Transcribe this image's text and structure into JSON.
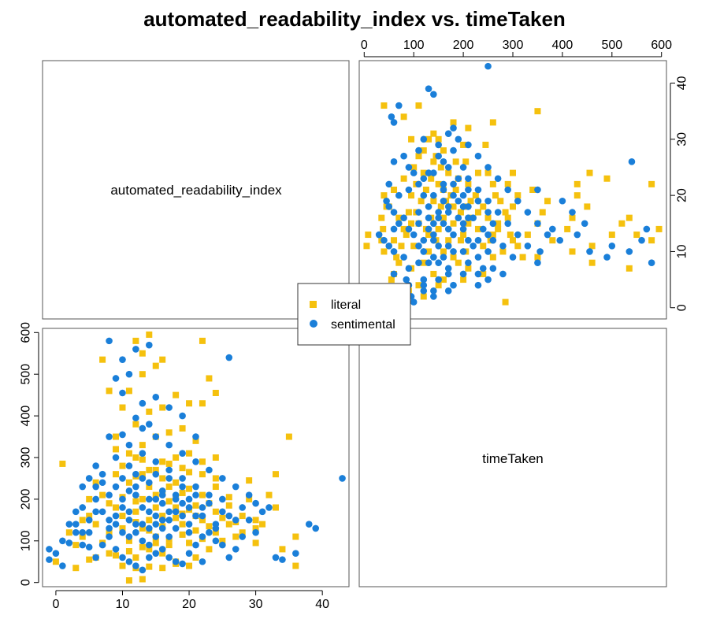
{
  "chart_data": {
    "type": "scatter",
    "title": "automated_readability_index vs. timeTaken",
    "variables": [
      "automated_readability_index",
      "timeTaken"
    ],
    "xlim_readability": [
      -2,
      44
    ],
    "ylim_readability": [
      -2,
      44
    ],
    "xlim_time": [
      -10,
      610
    ],
    "ylim_time": [
      -10,
      610
    ],
    "readability_ticks": [
      0,
      10,
      20,
      30,
      40
    ],
    "time_ticks": [
      0,
      100,
      200,
      300,
      400,
      500,
      600
    ],
    "grid": false,
    "legend_position": "center",
    "series": [
      {
        "name": "literal",
        "marker": "square",
        "color": "#F5C10E",
        "points": [
          [
            14,
            80
          ],
          [
            12,
            60
          ],
          [
            16,
            70
          ],
          [
            18,
            45
          ],
          [
            11,
            100
          ],
          [
            20,
            95
          ],
          [
            15,
            110
          ],
          [
            13,
            130
          ],
          [
            17,
            90
          ],
          [
            19,
            140
          ],
          [
            22,
            105
          ],
          [
            24,
            120
          ],
          [
            14,
            150
          ],
          [
            12,
            170
          ],
          [
            10,
            130
          ],
          [
            16,
            160
          ],
          [
            18,
            180
          ],
          [
            21,
            160
          ],
          [
            23,
            190
          ],
          [
            13,
            200
          ],
          [
            15,
            210
          ],
          [
            17,
            230
          ],
          [
            19,
            215
          ],
          [
            11,
            240
          ],
          [
            9,
            180
          ],
          [
            8,
            120
          ],
          [
            7,
            95
          ],
          [
            6,
            140
          ],
          [
            5,
            160
          ],
          [
            4,
            110
          ],
          [
            3,
            90
          ],
          [
            2,
            120
          ],
          [
            1,
            285
          ],
          [
            0,
            50
          ],
          [
            3,
            35
          ],
          [
            26,
            185
          ],
          [
            28,
            160
          ],
          [
            30,
            150
          ],
          [
            27,
            110
          ],
          [
            25,
            100
          ],
          [
            23,
            80
          ],
          [
            21,
            60
          ],
          [
            20,
            40
          ],
          [
            18,
            50
          ],
          [
            16,
            35
          ],
          [
            14,
            38
          ],
          [
            12,
            35
          ],
          [
            10,
            40
          ],
          [
            13,
            8
          ],
          [
            11,
            5
          ],
          [
            12,
            255
          ],
          [
            14,
            270
          ],
          [
            16,
            290
          ],
          [
            18,
            300
          ],
          [
            20,
            310
          ],
          [
            22,
            260
          ],
          [
            24,
            300
          ],
          [
            13,
            330
          ],
          [
            15,
            350
          ],
          [
            17,
            360
          ],
          [
            19,
            370
          ],
          [
            21,
            340
          ],
          [
            12,
            380
          ],
          [
            14,
            410
          ],
          [
            16,
            420
          ],
          [
            18,
            450
          ],
          [
            20,
            430
          ],
          [
            22,
            430
          ],
          [
            10,
            420
          ],
          [
            9,
            350
          ],
          [
            11,
            460
          ],
          [
            13,
            500
          ],
          [
            15,
            520
          ],
          [
            16,
            535
          ],
          [
            13,
            550
          ],
          [
            12,
            580
          ],
          [
            14,
            595
          ],
          [
            22,
            580
          ],
          [
            7,
            535
          ],
          [
            8,
            460
          ],
          [
            9,
            320
          ],
          [
            10,
            280
          ],
          [
            12,
            300
          ],
          [
            16,
            250
          ],
          [
            18,
            240
          ],
          [
            20,
            225
          ],
          [
            22,
            210
          ],
          [
            24,
            230
          ],
          [
            26,
            205
          ],
          [
            29,
            200
          ],
          [
            30,
            130
          ],
          [
            32,
            210
          ],
          [
            33,
            260
          ],
          [
            33,
            180
          ],
          [
            34,
            80
          ],
          [
            35,
            350
          ],
          [
            36,
            40
          ],
          [
            36,
            110
          ],
          [
            24,
            455
          ],
          [
            23,
            490
          ],
          [
            29,
            245
          ],
          [
            27,
            145
          ],
          [
            25,
            155
          ],
          [
            23,
            135
          ],
          [
            21,
            125
          ],
          [
            19,
            115
          ],
          [
            17,
            105
          ],
          [
            15,
            95
          ],
          [
            13,
            85
          ],
          [
            11,
            75
          ],
          [
            9,
            65
          ],
          [
            8,
            70
          ],
          [
            6,
            60
          ],
          [
            5,
            55
          ],
          [
            15,
            180
          ],
          [
            17,
            195
          ],
          [
            19,
            165
          ],
          [
            21,
            185
          ],
          [
            14,
            230
          ],
          [
            16,
            215
          ],
          [
            18,
            205
          ],
          [
            12,
            195
          ],
          [
            10,
            205
          ],
          [
            8,
            190
          ],
          [
            10,
            160
          ],
          [
            12,
            145
          ],
          [
            14,
            125
          ],
          [
            16,
            135
          ],
          [
            18,
            155
          ],
          [
            20,
            175
          ],
          [
            22,
            150
          ],
          [
            24,
            170
          ],
          [
            26,
            140
          ],
          [
            28,
            120
          ],
          [
            30,
            95
          ],
          [
            31,
            140
          ],
          [
            7,
            210
          ],
          [
            6,
            240
          ],
          [
            5,
            200
          ],
          [
            4,
            150
          ],
          [
            13,
            260
          ],
          [
            15,
            270
          ],
          [
            17,
            285
          ],
          [
            19,
            275
          ],
          [
            11,
            310
          ],
          [
            13,
            295
          ],
          [
            9,
            260
          ],
          [
            20,
            265
          ],
          [
            22,
            290
          ],
          [
            24,
            250
          ]
        ]
      },
      {
        "name": "sentimental",
        "marker": "circle",
        "color": "#1A7FD9",
        "points": [
          [
            43,
            250
          ],
          [
            39,
            130
          ],
          [
            38,
            140
          ],
          [
            36,
            70
          ],
          [
            33,
            60
          ],
          [
            34,
            55
          ],
          [
            26,
            540
          ],
          [
            8,
            580
          ],
          [
            10,
            535
          ],
          [
            12,
            560
          ],
          [
            14,
            570
          ],
          [
            11,
            500
          ],
          [
            9,
            490
          ],
          [
            10,
            455
          ],
          [
            13,
            430
          ],
          [
            15,
            445
          ],
          [
            17,
            420
          ],
          [
            19,
            400
          ],
          [
            21,
            350
          ],
          [
            14,
            380
          ],
          [
            12,
            395
          ],
          [
            10,
            355
          ],
          [
            8,
            350
          ],
          [
            6,
            280
          ],
          [
            5,
            250
          ],
          [
            4,
            230
          ],
          [
            3,
            170
          ],
          [
            2,
            140
          ],
          [
            1,
            100
          ],
          [
            -1,
            80
          ],
          [
            0,
            70
          ],
          [
            1,
            40
          ],
          [
            -1,
            55
          ],
          [
            2,
            95
          ],
          [
            4,
            120
          ],
          [
            5,
            85
          ],
          [
            6,
            60
          ],
          [
            7,
            90
          ],
          [
            8,
            130
          ],
          [
            9,
            160
          ],
          [
            10,
            180
          ],
          [
            11,
            150
          ],
          [
            12,
            120
          ],
          [
            13,
            100
          ],
          [
            14,
            90
          ],
          [
            15,
            110
          ],
          [
            16,
            130
          ],
          [
            17,
            150
          ],
          [
            18,
            170
          ],
          [
            19,
            190
          ],
          [
            20,
            140
          ],
          [
            21,
            160
          ],
          [
            22,
            180
          ],
          [
            23,
            120
          ],
          [
            24,
            100
          ],
          [
            25,
            90
          ],
          [
            26,
            60
          ],
          [
            27,
            80
          ],
          [
            28,
            110
          ],
          [
            29,
            150
          ],
          [
            30,
            190
          ],
          [
            31,
            170
          ],
          [
            29,
            210
          ],
          [
            27,
            230
          ],
          [
            25,
            200
          ],
          [
            23,
            210
          ],
          [
            21,
            230
          ],
          [
            19,
            250
          ],
          [
            17,
            270
          ],
          [
            15,
            290
          ],
          [
            13,
            310
          ],
          [
            11,
            330
          ],
          [
            9,
            300
          ],
          [
            7,
            260
          ],
          [
            6,
            200
          ],
          [
            5,
            150
          ],
          [
            4,
            180
          ],
          [
            3,
            120
          ],
          [
            7,
            170
          ],
          [
            8,
            110
          ],
          [
            9,
            80
          ],
          [
            10,
            60
          ],
          [
            11,
            50
          ],
          [
            12,
            40
          ],
          [
            13,
            30
          ],
          [
            14,
            60
          ],
          [
            15,
            70
          ],
          [
            16,
            80
          ],
          [
            17,
            60
          ],
          [
            18,
            50
          ],
          [
            19,
            45
          ],
          [
            20,
            70
          ],
          [
            21,
            90
          ],
          [
            22,
            50
          ],
          [
            24,
            130
          ],
          [
            26,
            160
          ],
          [
            28,
            180
          ],
          [
            30,
            120
          ],
          [
            32,
            180
          ],
          [
            25,
            250
          ],
          [
            23,
            270
          ],
          [
            21,
            290
          ],
          [
            19,
            310
          ],
          [
            17,
            330
          ],
          [
            15,
            350
          ],
          [
            13,
            370
          ],
          [
            11,
            280
          ],
          [
            12,
            260
          ],
          [
            14,
            240
          ],
          [
            16,
            220
          ],
          [
            18,
            200
          ],
          [
            20,
            180
          ],
          [
            22,
            160
          ],
          [
            24,
            140
          ],
          [
            10,
            200
          ],
          [
            12,
            210
          ],
          [
            14,
            200
          ],
          [
            16,
            190
          ],
          [
            18,
            210
          ],
          [
            20,
            200
          ],
          [
            11,
            170
          ],
          [
            13,
            180
          ],
          [
            15,
            160
          ],
          [
            17,
            170
          ],
          [
            19,
            160
          ],
          [
            9,
            140
          ],
          [
            10,
            120
          ],
          [
            12,
            140
          ],
          [
            14,
            130
          ],
          [
            16,
            150
          ],
          [
            18,
            130
          ],
          [
            20,
            120
          ],
          [
            22,
            110
          ],
          [
            8,
            150
          ],
          [
            6,
            170
          ],
          [
            5,
            120
          ],
          [
            4,
            90
          ],
          [
            3,
            140
          ],
          [
            6,
            230
          ],
          [
            7,
            240
          ],
          [
            8,
            210
          ],
          [
            9,
            230
          ],
          [
            11,
            220
          ],
          [
            13,
            250
          ],
          [
            15,
            260
          ],
          [
            17,
            250
          ],
          [
            19,
            230
          ],
          [
            21,
            210
          ],
          [
            23,
            190
          ],
          [
            25,
            170
          ],
          [
            27,
            150
          ],
          [
            14,
            170
          ],
          [
            15,
            200
          ],
          [
            16,
            210
          ],
          [
            12,
            230
          ],
          [
            10,
            250
          ],
          [
            13,
            140
          ],
          [
            15,
            140
          ],
          [
            11,
            110
          ],
          [
            17,
            110
          ]
        ]
      }
    ]
  }
}
